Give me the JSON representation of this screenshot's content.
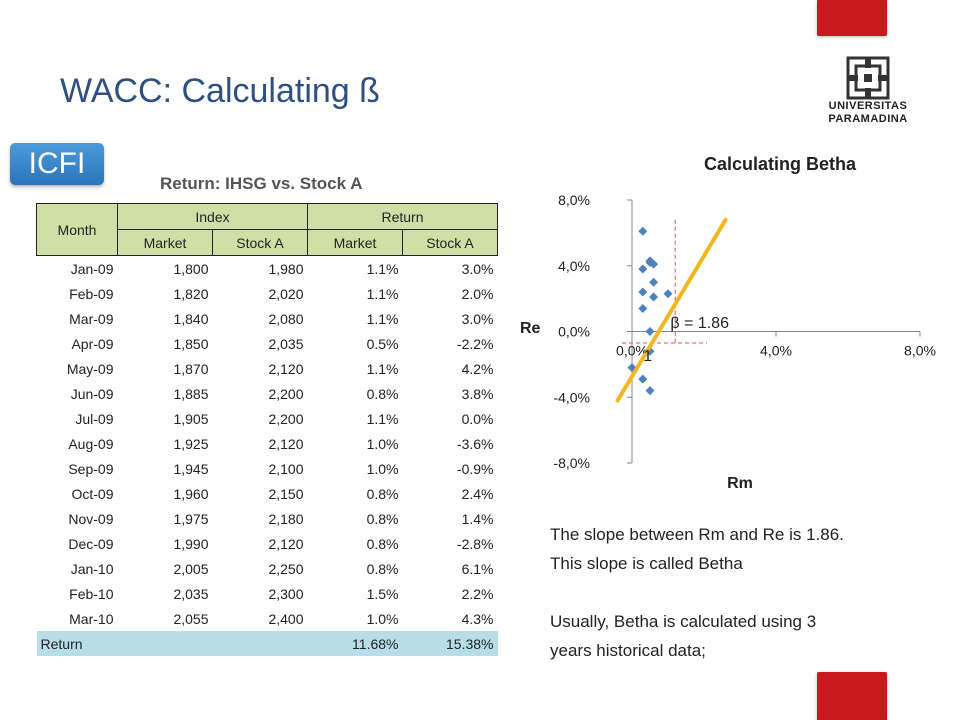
{
  "slide": {
    "title": "WACC: Calculating ß",
    "badge": "ICFI",
    "logo": {
      "line1": "UNIVERSITAS",
      "line2": "PARAMADINA"
    }
  },
  "table": {
    "title": "Return: IHSG vs. Stock A",
    "header_month": "Month",
    "header_index": "Index",
    "header_return": "Return",
    "subheaders": [
      "Market",
      "Stock A",
      "Market",
      "Stock A"
    ],
    "rows": [
      [
        "Jan-09",
        "1,800",
        "1,980",
        "1.1%",
        "3.0%"
      ],
      [
        "Feb-09",
        "1,820",
        "2,020",
        "1.1%",
        "2.0%"
      ],
      [
        "Mar-09",
        "1,840",
        "2,080",
        "1.1%",
        "3.0%"
      ],
      [
        "Apr-09",
        "1,850",
        "2,035",
        "0.5%",
        "-2.2%"
      ],
      [
        "May-09",
        "1,870",
        "2,120",
        "1.1%",
        "4.2%"
      ],
      [
        "Jun-09",
        "1,885",
        "2,200",
        "0.8%",
        "3.8%"
      ],
      [
        "Jul-09",
        "1,905",
        "2,200",
        "1.1%",
        "0.0%"
      ],
      [
        "Aug-09",
        "1,925",
        "2,120",
        "1.0%",
        "-3.6%"
      ],
      [
        "Sep-09",
        "1,945",
        "2,100",
        "1.0%",
        "-0.9%"
      ],
      [
        "Oct-09",
        "1,960",
        "2,150",
        "0.8%",
        "2.4%"
      ],
      [
        "Nov-09",
        "1,975",
        "2,180",
        "0.8%",
        "1.4%"
      ],
      [
        "Dec-09",
        "1,990",
        "2,120",
        "0.8%",
        "-2.8%"
      ],
      [
        "Jan-10",
        "2,005",
        "2,250",
        "0.8%",
        "6.1%"
      ],
      [
        "Feb-10",
        "2,035",
        "2,300",
        "1.5%",
        "2.2%"
      ],
      [
        "Mar-10",
        "2,055",
        "2,400",
        "1.0%",
        "4.3%"
      ]
    ],
    "total": {
      "label": "Return",
      "market": "11.68%",
      "stock": "15.38%"
    }
  },
  "chart_data": {
    "type": "scatter",
    "title": "Calculating Betha",
    "xlabel": "Rm",
    "ylabel": "Re",
    "xlim": [
      0,
      8
    ],
    "ylim": [
      -8,
      8
    ],
    "x_ticks": [
      "0,0%",
      "4,0%",
      "8,0%"
    ],
    "y_ticks": [
      "8,0%",
      "4,0%",
      "0,0%",
      "-4,0%",
      "-8,0%"
    ],
    "x_tick_values": [
      0,
      4,
      8
    ],
    "y_tick_values": [
      8,
      4,
      0,
      -4,
      -8
    ],
    "points": [
      [
        0.3,
        6.1
      ],
      [
        0.5,
        4.3
      ],
      [
        0.5,
        4.2
      ],
      [
        0.6,
        4.1
      ],
      [
        0.3,
        3.8
      ],
      [
        0.6,
        3.0
      ],
      [
        0.3,
        2.4
      ],
      [
        0.6,
        2.1
      ],
      [
        1.0,
        2.3
      ],
      [
        0.3,
        1.4
      ],
      [
        0.5,
        0.0
      ],
      [
        0.5,
        -1.2
      ],
      [
        0.0,
        -2.2
      ],
      [
        0.3,
        -2.9
      ],
      [
        0.5,
        -3.6
      ]
    ],
    "trendline": {
      "x": [
        -0.4,
        2.6
      ],
      "y": [
        -4.2,
        6.8
      ],
      "color": "#f2b61e"
    },
    "point_color": "#4f81bd",
    "gridlines": false,
    "beta_label": "β = 1.86",
    "run_label": "1"
  },
  "notes": {
    "line1": "The slope between Rm and Re is 1.86.",
    "line2": "This slope is called Betha",
    "line3": "Usually, Betha is calculated using 3",
    "line4": "years historical data;"
  }
}
